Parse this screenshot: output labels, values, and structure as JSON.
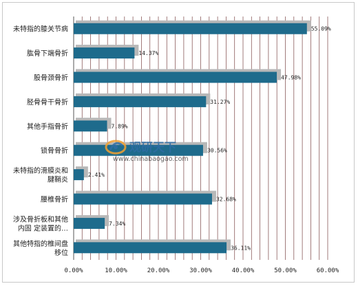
{
  "chart_data": {
    "type": "bar",
    "orientation": "horizontal",
    "categories": [
      [
        "未特指的膝关节病"
      ],
      [
        "肱骨下端骨折"
      ],
      [
        "股骨颈骨折"
      ],
      [
        "胫骨骨干骨折"
      ],
      [
        "其他手指骨折"
      ],
      [
        "锁骨骨折"
      ],
      [
        "未特指的滑膜炎和",
        "腱鞘炎"
      ],
      [
        "腰椎骨折"
      ],
      [
        "涉及骨折板和其他",
        "内固 定装置的…"
      ],
      [
        "其他特指的椎间盘",
        "移位"
      ]
    ],
    "values": [
      55.09,
      14.37,
      47.98,
      31.27,
      7.89,
      30.56,
      2.41,
      32.68,
      7.34,
      36.11
    ],
    "value_labels": [
      "55.09%",
      "14.37%",
      "47.98%",
      "31.27%",
      "7.89%",
      "30.56%",
      "2.41%",
      "32.68%",
      "7.34%",
      "36.11%"
    ],
    "xticks": [
      "0.00%",
      "10.00%",
      "20.00%",
      "30.00%",
      "40.00%",
      "50.00%",
      "60.00%"
    ],
    "xlim": [
      0,
      60
    ],
    "grid": true,
    "colors": {
      "bar": "#1e6b8c",
      "bar_shadow": "#b8b8b8",
      "grid": "#8a5a5a"
    }
  },
  "watermark": {
    "logo": "chinabaogao-logo-icon",
    "text": "观研天下",
    "url": "www.chinabaogao.com"
  }
}
